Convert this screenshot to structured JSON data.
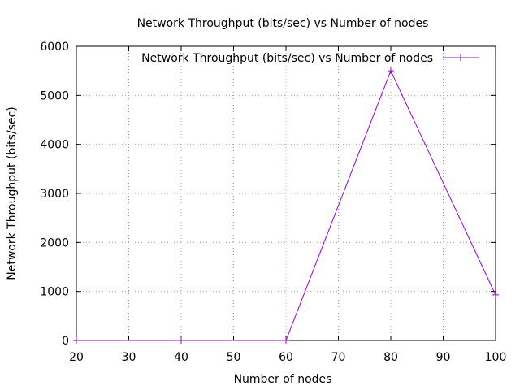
{
  "chart_data": {
    "type": "line",
    "title": "Network Throughput (bits/sec) vs Number of nodes",
    "xlabel": "Number of nodes",
    "ylabel": "Network Throughput (bits/sec)",
    "xlim": [
      20,
      100
    ],
    "ylim": [
      0,
      6000
    ],
    "x_ticks": [
      20,
      30,
      40,
      50,
      60,
      70,
      80,
      90,
      100
    ],
    "y_ticks": [
      0,
      1000,
      2000,
      3000,
      4000,
      5000,
      6000
    ],
    "grid": true,
    "legend_position": "top-right",
    "series": [
      {
        "name": "Network Throughput (bits/sec) vs Number of nodes",
        "color": "#9400d3",
        "marker": "plus",
        "x": [
          20,
          40,
          60,
          80,
          100
        ],
        "y": [
          0,
          0,
          0,
          5500,
          930
        ]
      }
    ]
  }
}
